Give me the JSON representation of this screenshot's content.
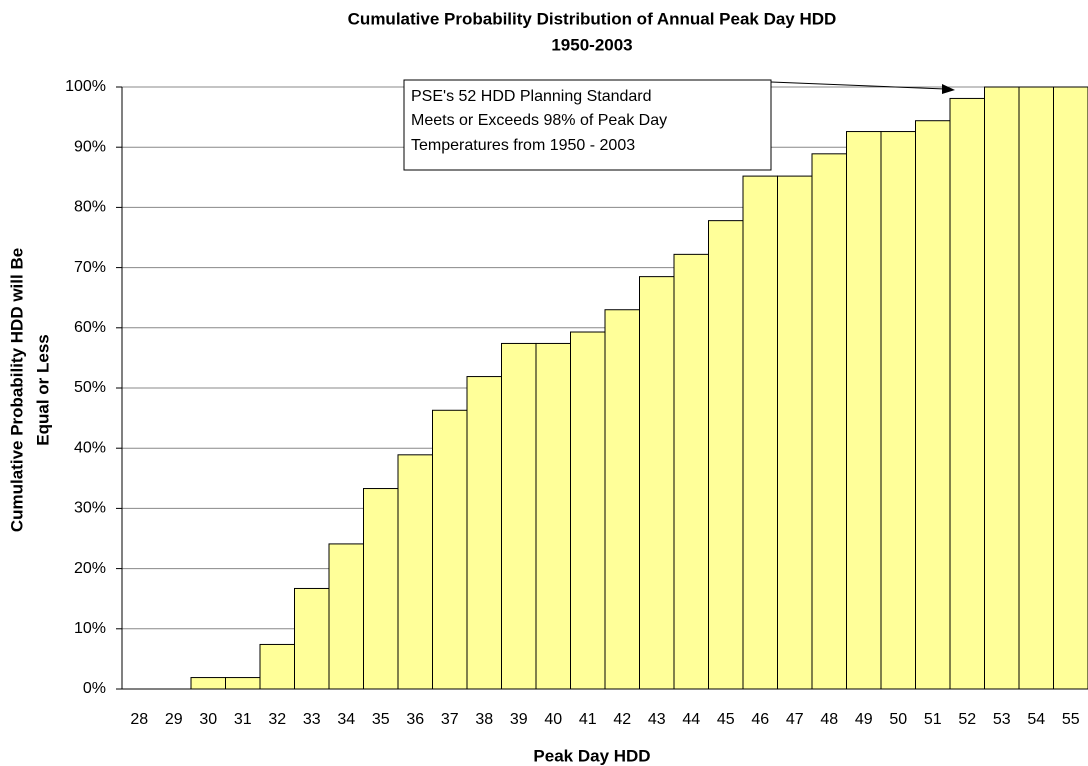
{
  "chart_data": {
    "type": "bar",
    "title": [
      "Cumulative Probability Distribution of Annual Peak Day HDD",
      "1950-2003"
    ],
    "x_label": "Peak Day HDD",
    "y_label": [
      "Cumulative Probability HDD will Be",
      "Equal or Less"
    ],
    "annotation": [
      "PSE's 52 HDD Planning Standard",
      "Meets or Exceeds 98% of Peak Day",
      "Temperatures from 1950 - 2003"
    ],
    "categories": [
      "28",
      "29",
      "30",
      "31",
      "32",
      "33",
      "34",
      "35",
      "36",
      "37",
      "38",
      "39",
      "40",
      "41",
      "42",
      "43",
      "44",
      "45",
      "46",
      "47",
      "48",
      "49",
      "50",
      "51",
      "52",
      "53",
      "54",
      "55"
    ],
    "values": [
      0,
      0,
      1.9,
      1.9,
      7.4,
      16.7,
      24.1,
      33.3,
      38.9,
      46.3,
      51.9,
      57.4,
      57.4,
      59.3,
      63.0,
      68.5,
      72.2,
      77.8,
      85.2,
      85.2,
      88.9,
      92.6,
      92.6,
      94.4,
      98.1,
      100,
      100,
      100
    ],
    "color": "#ffff99",
    "ylim": [
      0,
      100
    ],
    "yticks": [
      {
        "value": 0,
        "label": "0%"
      },
      {
        "value": 10,
        "label": "10%"
      },
      {
        "value": 20,
        "label": "20%"
      },
      {
        "value": 30,
        "label": "30%"
      },
      {
        "value": 40,
        "label": "40%"
      },
      {
        "value": 50,
        "label": "50%"
      },
      {
        "value": 60,
        "label": "60%"
      },
      {
        "value": 70,
        "label": "70%"
      },
      {
        "value": 80,
        "label": "80%"
      },
      {
        "value": 90,
        "label": "90%"
      },
      {
        "value": 100,
        "label": "100%"
      }
    ],
    "grid": true
  }
}
